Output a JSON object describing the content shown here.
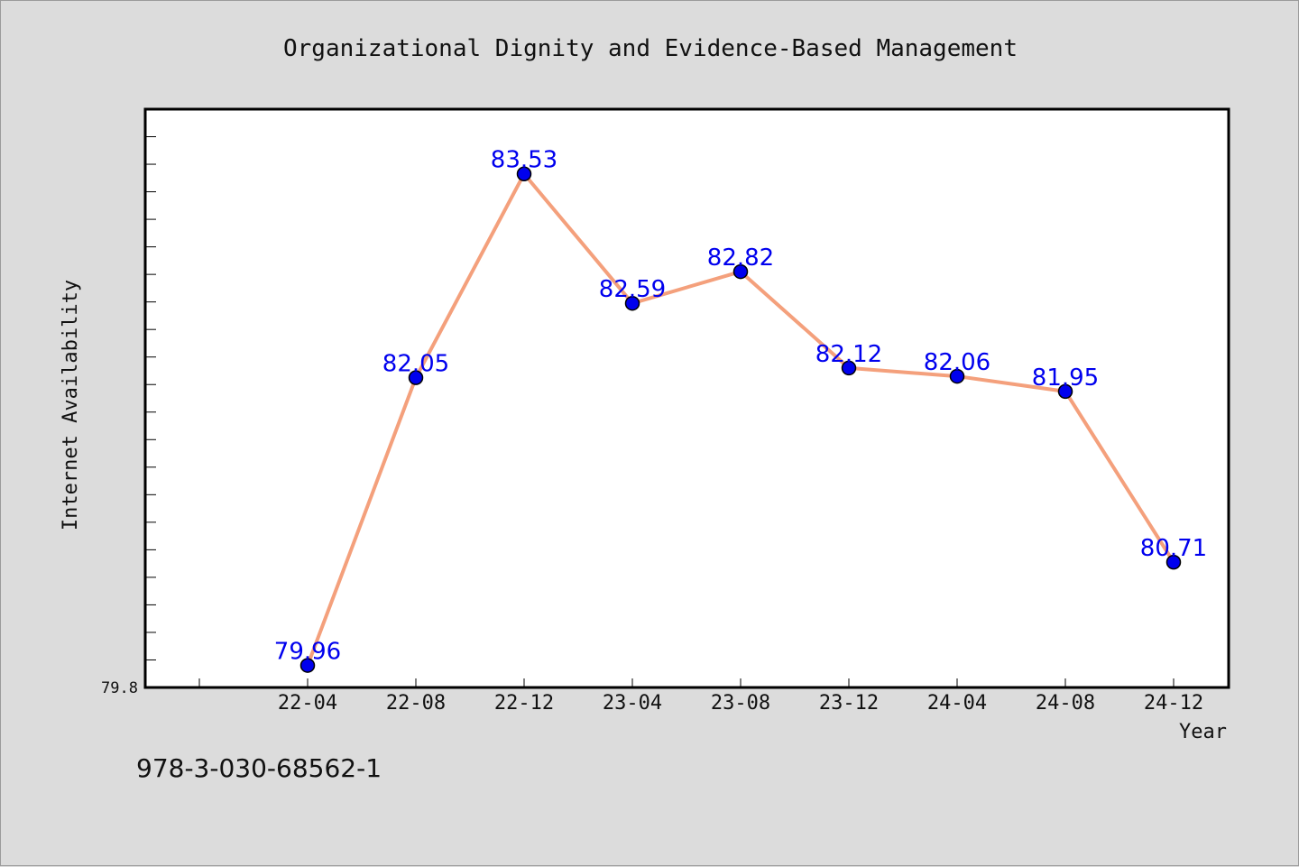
{
  "chart_data": {
    "type": "line",
    "title": "Organizational Dignity and Evidence-Based Management",
    "xlabel": "Year",
    "ylabel": "Internet Availability",
    "categories": [
      "22-04",
      "22-08",
      "22-12",
      "23-04",
      "23-08",
      "23-12",
      "24-04",
      "24-08",
      "24-12"
    ],
    "values": [
      79.96,
      82.05,
      83.53,
      82.59,
      82.82,
      82.12,
      82.06,
      81.95,
      80.71
    ],
    "data_labels": [
      "79.96",
      "82.05",
      "83.53",
      "82.59",
      "82.82",
      "82.12",
      "82.06",
      "81.95",
      "80.71"
    ],
    "y_tick_labels": [
      "79.8"
    ],
    "y_tick_values": [
      79.8
    ],
    "ylim": [
      79.8,
      84.0
    ],
    "grid": false,
    "legend": "none",
    "colors": {
      "line": "#f4a07c",
      "marker": "#0000ee",
      "data_label": "#0000ee",
      "plot_background": "#ffffff",
      "page_background": "#dcdcdc"
    }
  },
  "footer": {
    "caption": "978-3-030-68562-1"
  }
}
